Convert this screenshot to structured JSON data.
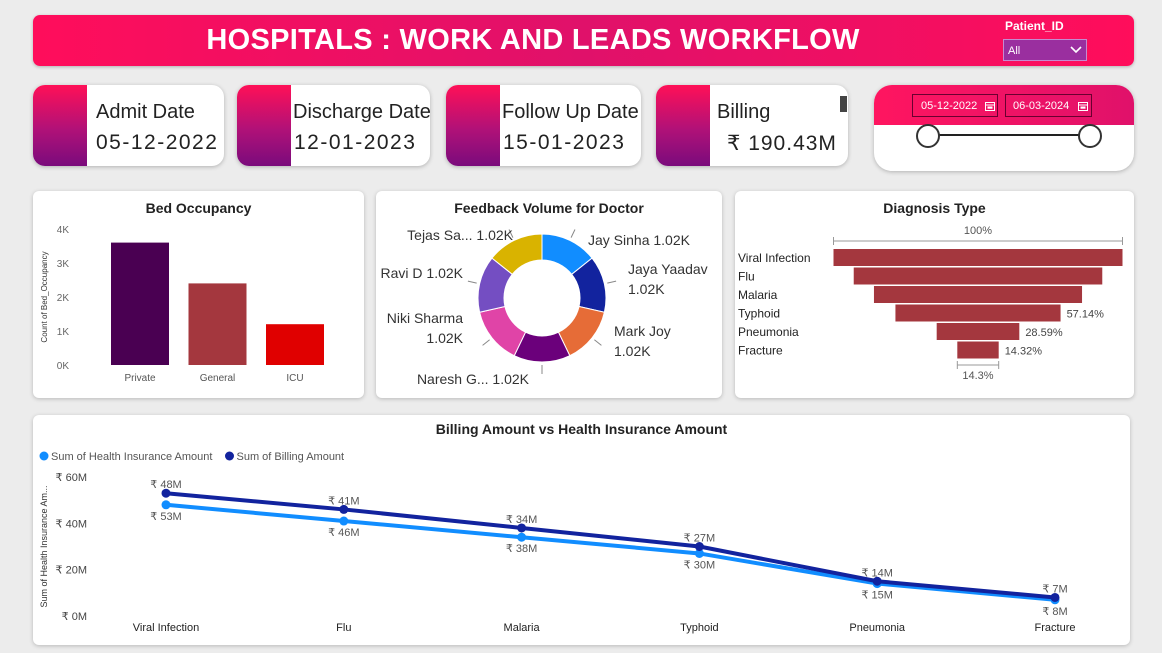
{
  "header": {
    "title": "HOSPITALS : WORK AND LEADS WORKFLOW"
  },
  "slicer": {
    "label": "Patient_ID",
    "value": "All"
  },
  "kpis": [
    {
      "label": "Admit Date",
      "value": "05-12-2022"
    },
    {
      "label": "Discharge Date",
      "value": "12-01-2023"
    },
    {
      "label": "Follow Up Date",
      "value": "15-01-2023"
    },
    {
      "label": "Billing",
      "value": "₹ 190.43M"
    }
  ],
  "date_range": {
    "start": "05-12-2022",
    "end": "06-03-2024"
  },
  "colors": {
    "accent": "#ff0d5b",
    "purple": "#4a0052",
    "brown": "#a4373e",
    "red": "#e00000"
  },
  "chart_data": [
    {
      "type": "bar",
      "title": "Bed Occupancy",
      "ylabel": "Count of Bed_Occupancy",
      "xlabel": "",
      "categories": [
        "Private",
        "General",
        "ICU"
      ],
      "values": [
        3600,
        2400,
        1200
      ],
      "bar_colors": [
        "#4a0052",
        "#a4373e",
        "#e00000"
      ],
      "ylim": [
        0,
        4000
      ],
      "yticks": [
        "0K",
        "1K",
        "2K",
        "3K",
        "4K"
      ]
    },
    {
      "type": "pie",
      "title": "Feedback Volume for Doctor",
      "slices": [
        {
          "name": "Jay Sinha",
          "label": "1.02K",
          "value": 1020,
          "color": "#118dff"
        },
        {
          "name": "Jaya Yaadav",
          "label": "1.02K",
          "value": 1020,
          "color": "#12239e"
        },
        {
          "name": "Mark Joy",
          "label": "1.02K",
          "value": 1020,
          "color": "#e66c37"
        },
        {
          "name": "Naresh G...",
          "label": "1.02K",
          "value": 1020,
          "color": "#6b007b"
        },
        {
          "name": "Niki Sharma",
          "label": "1.02K",
          "value": 1020,
          "color": "#e044a7"
        },
        {
          "name": "Ravi D",
          "label": "1.02K",
          "value": 1020,
          "color": "#744ec2"
        },
        {
          "name": "Tejas Sa...",
          "label": "1.02K",
          "value": 1020,
          "color": "#d9b300"
        }
      ]
    },
    {
      "type": "bar",
      "title": "Diagnosis Type",
      "top_label": "100%",
      "bottom_label": "14.3%",
      "categories": [
        "Viral Infection",
        "Flu",
        "Malaria",
        "Typhoid",
        "Pneumonia",
        "Fracture"
      ],
      "values": [
        100,
        86,
        72,
        57.14,
        28.59,
        14.32
      ],
      "data_labels": [
        "",
        "",
        "",
        "57.14%",
        "28.59%",
        "14.32%"
      ],
      "color": "#a4373e"
    },
    {
      "type": "line",
      "title": "Billing Amount vs Health Insurance Amount",
      "ylabel": "Sum of Health Insurance Am...",
      "xlabel": "",
      "categories": [
        "Viral Infection",
        "Flu",
        "Malaria",
        "Typhoid",
        "Pneumonia",
        "Fracture"
      ],
      "ylim": [
        0,
        60
      ],
      "yticks": [
        "₹ 0M",
        "₹ 20M",
        "₹ 40M",
        "₹ 60M"
      ],
      "legend_position": "top-left",
      "series": [
        {
          "name": "Sum of Health Insurance Amount",
          "values": [
            48,
            41,
            34,
            27,
            14,
            7
          ],
          "labels": [
            "₹ 48M",
            "₹ 41M",
            "₹ 34M",
            "₹ 27M",
            "₹ 14M",
            "₹ 7M"
          ],
          "color": "#118dff"
        },
        {
          "name": "Sum of Billing Amount",
          "values": [
            53,
            46,
            38,
            30,
            15,
            8
          ],
          "labels": [
            "₹ 53M",
            "₹ 46M",
            "₹ 38M",
            "₹ 30M",
            "₹ 15M",
            "₹ 8M"
          ],
          "color": "#12239e"
        }
      ]
    }
  ]
}
